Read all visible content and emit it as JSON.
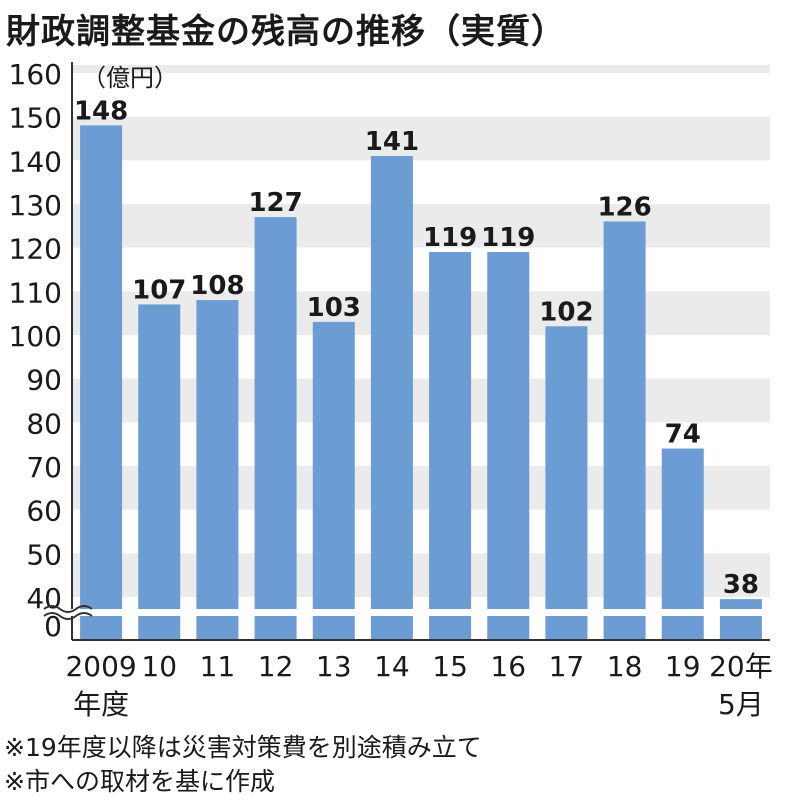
{
  "title": "財政調整基金の残高の推移（実質）",
  "notes": [
    "※19年度以降は災害対策費を別途積み立て",
    "※市への取材を基に作成"
  ],
  "colors": {
    "bar": "#6b9cd4",
    "band": "#ebebeb",
    "axis": "#333333",
    "text": "#1a1a1a"
  },
  "chart_data": {
    "type": "bar",
    "unit_label": "（億円）",
    "categories": [
      "2009",
      "10",
      "11",
      "12",
      "13",
      "14",
      "15",
      "16",
      "17",
      "18",
      "19",
      "20年"
    ],
    "category_sublabels": [
      "年度",
      "",
      "",
      "",
      "",
      "",
      "",
      "",
      "",
      "",
      "",
      "5月"
    ],
    "values": [
      148,
      107,
      108,
      127,
      103,
      141,
      119,
      119,
      102,
      126,
      74,
      38
    ],
    "y_ticks": [
      160,
      150,
      140,
      130,
      120,
      110,
      100,
      90,
      80,
      70,
      60,
      50,
      40,
      0
    ],
    "ylim": [
      0,
      160
    ],
    "axis_break": "between 0 and 40",
    "grid": "alternating horizontal bands"
  }
}
